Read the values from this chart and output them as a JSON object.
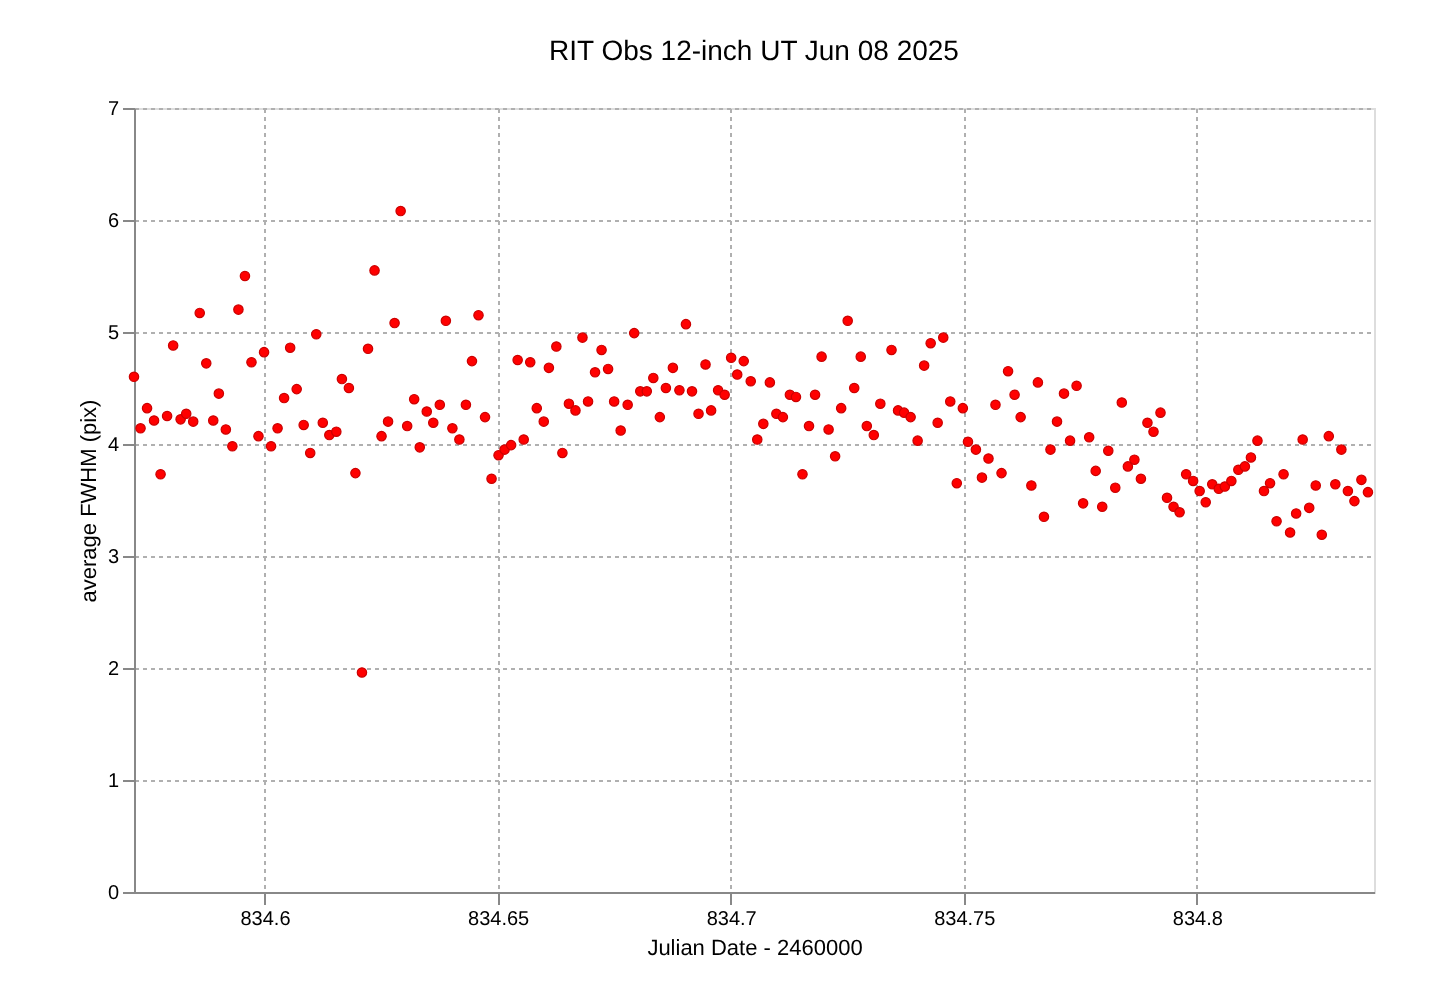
{
  "chart_data": {
    "type": "scatter",
    "title": "RIT Obs 12-inch UT Jun 08 2025",
    "xlabel": "Julian Date - 2460000",
    "ylabel": "average FWHM (pix)",
    "color": "#ff0000",
    "marker": "circle",
    "grid": true,
    "xlim": [
      834.572,
      834.838
    ],
    "ylim": [
      0,
      7
    ],
    "xticks": [
      834.6,
      834.65,
      834.7,
      834.75,
      834.8
    ],
    "yticks": [
      0,
      1,
      2,
      3,
      4,
      5,
      6,
      7
    ],
    "x": [
      834.572,
      834.5734,
      834.5748,
      834.5763,
      834.5777,
      834.5791,
      834.5804,
      834.582,
      834.5832,
      834.5847,
      834.5861,
      834.5875,
      834.589,
      834.5902,
      834.5917,
      834.5931,
      834.5944,
      834.5958,
      834.5972,
      834.5987,
      834.5999,
      834.6014,
      834.6028,
      834.6042,
      834.6055,
      834.6069,
      834.6084,
      834.6098,
      834.6111,
      834.6125,
      834.6139,
      834.6154,
      834.6166,
      834.6181,
      834.6195,
      834.6209,
      834.6222,
      834.6236,
      834.6251,
      834.6265,
      834.6279,
      834.6292,
      834.6306,
      834.6321,
      834.6333,
      834.6348,
      834.6362,
      834.6376,
      834.6389,
      834.6403,
      834.6418,
      834.6432,
      834.6445,
      834.6459,
      834.6473,
      834.6487,
      834.6502,
      834.6515,
      834.6529,
      834.6543,
      834.6556,
      834.657,
      834.6584,
      834.6599,
      834.661,
      834.6626,
      834.6639,
      834.6653,
      834.6667,
      834.6682,
      834.6694,
      834.6709,
      834.6723,
      834.6737,
      834.675,
      834.6764,
      834.6779,
      834.6793,
      834.6806,
      834.682,
      834.6834,
      834.6848,
      834.6861,
      834.6876,
      834.689,
      834.6904,
      834.6917,
      834.6931,
      834.6946,
      834.6958,
      834.6973,
      834.6987,
      834.7001,
      834.7014,
      834.7028,
      834.7043,
      834.7057,
      834.707,
      834.7084,
      834.7098,
      834.7112,
      834.7127,
      834.714,
      834.7154,
      834.7168,
      834.7181,
      834.7195,
      834.721,
      834.7224,
      834.7237,
      834.7251,
      834.7265,
      834.7279,
      834.7292,
      834.7307,
      834.7321,
      834.7345,
      834.7359,
      834.7372,
      834.7386,
      834.7401,
      834.7415,
      834.7429,
      834.7444,
      834.7456,
      834.7471,
      834.7485,
      834.7498,
      834.7509,
      834.7526,
      834.7539,
      834.7553,
      834.7568,
      834.7581,
      834.7595,
      834.7609,
      834.7622,
      834.7645,
      834.7659,
      834.7672,
      834.7686,
      834.77,
      834.7715,
      834.7728,
      834.7742,
      834.7756,
      834.7769,
      834.7783,
      834.7797,
      834.781,
      834.7825,
      834.7839,
      834.7852,
      834.7866,
      834.788,
      834.7894,
      834.7907,
      834.7922,
      834.7936,
      834.795,
      834.7963,
      834.7977,
      834.7992,
      834.8006,
      834.8019,
      834.8033,
      834.8047,
      834.806,
      834.8074,
      834.8089,
      834.8103,
      834.8116,
      834.813,
      834.8144,
      834.8157,
      834.8171,
      834.8186,
      834.82,
      834.8213,
      834.8227,
      834.8241,
      834.8255,
      834.8268,
      834.8283,
      834.8297,
      834.831,
      834.8324,
      834.8338,
      834.8353,
      834.8367
    ],
    "values": [
      4.6,
      4.14,
      4.32,
      4.21,
      3.73,
      4.25,
      4.88,
      4.22,
      4.27,
      4.2,
      5.17,
      4.72,
      4.21,
      4.45,
      4.13,
      3.98,
      5.2,
      5.5,
      4.73,
      4.07,
      4.82,
      3.98,
      4.14,
      4.41,
      4.86,
      4.49,
      4.17,
      3.92,
      4.98,
      4.19,
      4.08,
      4.11,
      4.58,
      4.5,
      3.74,
      1.96,
      4.85,
      5.55,
      4.07,
      4.2,
      5.08,
      6.08,
      4.16,
      4.4,
      3.97,
      4.29,
      4.19,
      4.35,
      5.1,
      4.14,
      4.04,
      4.35,
      4.74,
      5.15,
      4.24,
      3.69,
      3.9,
      3.95,
      3.99,
      4.75,
      4.04,
      4.73,
      4.32,
      4.2,
      4.68,
      4.87,
      3.92,
      4.36,
      4.3,
      4.95,
      4.38,
      4.64,
      4.84,
      4.67,
      4.38,
      4.12,
      4.35,
      4.99,
      4.47,
      4.47,
      4.59,
      4.24,
      4.5,
      4.68,
      4.48,
      5.07,
      4.47,
      4.27,
      4.71,
      4.3,
      4.48,
      4.44,
      4.77,
      4.62,
      4.74,
      4.56,
      4.04,
      4.18,
      4.55,
      4.27,
      4.24,
      4.44,
      4.42,
      3.73,
      4.16,
      4.44,
      4.78,
      4.13,
      3.89,
      4.32,
      5.1,
      4.5,
      4.78,
      4.16,
      4.08,
      4.36,
      4.84,
      4.3,
      4.28,
      4.24,
      4.03,
      4.7,
      4.9,
      4.19,
      4.95,
      4.38,
      3.65,
      4.32,
      4.02,
      3.95,
      3.7,
      3.87,
      4.35,
      3.74,
      4.65,
      4.44,
      4.24,
      3.63,
      4.55,
      3.35,
      3.95,
      4.2,
      4.45,
      4.03,
      4.52,
      3.47,
      4.06,
      3.76,
      3.44,
      3.94,
      3.61,
      4.37,
      3.8,
      3.86,
      3.69,
      4.19,
      4.11,
      4.28,
      3.52,
      3.44,
      3.39,
      3.73,
      3.67,
      3.58,
      3.48,
      3.64,
      3.6,
      3.62,
      3.67,
      3.77,
      3.8,
      3.88,
      4.03,
      3.58,
      3.65,
      3.31,
      3.73,
      3.21,
      3.38,
      4.04,
      3.43,
      3.63,
      3.19,
      4.07,
      3.64,
      3.95,
      3.58,
      3.49,
      3.68,
      3.57
    ]
  }
}
